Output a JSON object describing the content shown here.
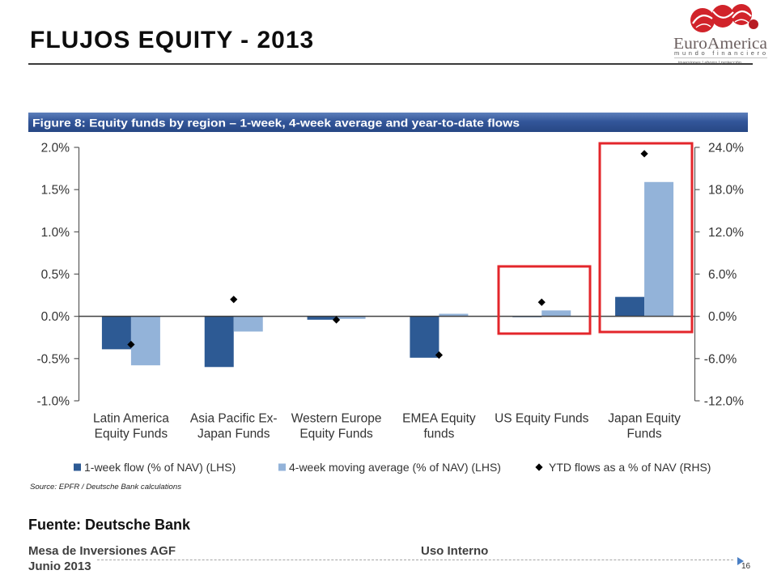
{
  "slide": {
    "title": "FLUJOS EQUITY - 2013",
    "source_note": "Fuente: Deutsche Bank"
  },
  "logo": {
    "brand": "EuroAmerica",
    "tagline": "mundo financiero",
    "subtagline": "inversiones | ahorro | protección"
  },
  "footer": {
    "department": "Mesa de Inversiones AGF",
    "date": "Junio 2013",
    "classification": "Uso Interno",
    "page_number": "16"
  },
  "chart_data": {
    "type": "bar",
    "title": "Figure 8: Equity funds by region – 1-week, 4-week average and year-to-date flows",
    "categories": [
      [
        "Latin America",
        "Equity Funds"
      ],
      [
        "Asia Pacific Ex-",
        "Japan Funds"
      ],
      [
        "Western Europe",
        "Equity Funds"
      ],
      [
        "EMEA Equity",
        "funds"
      ],
      [
        "US Equity Funds"
      ],
      [
        "Japan Equity",
        "Funds"
      ]
    ],
    "series": [
      {
        "name": "1-week flow (% of NAV) (LHS)",
        "type": "bar",
        "axis": "left",
        "color": "#2D5A94",
        "values": [
          -0.39,
          -0.6,
          -0.04,
          -0.49,
          -0.01,
          0.23
        ]
      },
      {
        "name": "4-week moving average (% of NAV) (LHS)",
        "type": "bar",
        "axis": "left",
        "color": "#93B3D9",
        "values": [
          -0.58,
          -0.18,
          -0.03,
          0.03,
          0.07,
          1.59
        ]
      },
      {
        "name": "YTD flows as a % of NAV (RHS)",
        "type": "scatter",
        "marker": "diamond",
        "axis": "right",
        "color": "#000000",
        "values": [
          -4.0,
          2.4,
          -0.5,
          -5.5,
          2.0,
          23.1
        ]
      }
    ],
    "y_left": {
      "lim": [
        -1.0,
        2.0
      ],
      "ticks": [
        2.0,
        1.5,
        1.0,
        0.5,
        0.0,
        -0.5,
        -1.0
      ],
      "tick_labels": [
        "2.0%",
        "1.5%",
        "1.0%",
        "0.5%",
        "0.0%",
        "-0.5%",
        "-1.0%"
      ]
    },
    "y_right": {
      "lim": [
        -12.0,
        24.0
      ],
      "ticks": [
        24.0,
        18.0,
        12.0,
        6.0,
        0.0,
        -6.0,
        -12.0
      ],
      "tick_labels": [
        "24.0%",
        "18.0%",
        "12.0%",
        "6.0%",
        "0.0%",
        "-6.0%",
        "-12.0%"
      ]
    },
    "grid": false,
    "legend": "bottom",
    "source": "Source: EPFR / Deutsche Bank calculations",
    "highlighted_categories": [
      4,
      5
    ],
    "highlight_color": "#E3262B"
  }
}
